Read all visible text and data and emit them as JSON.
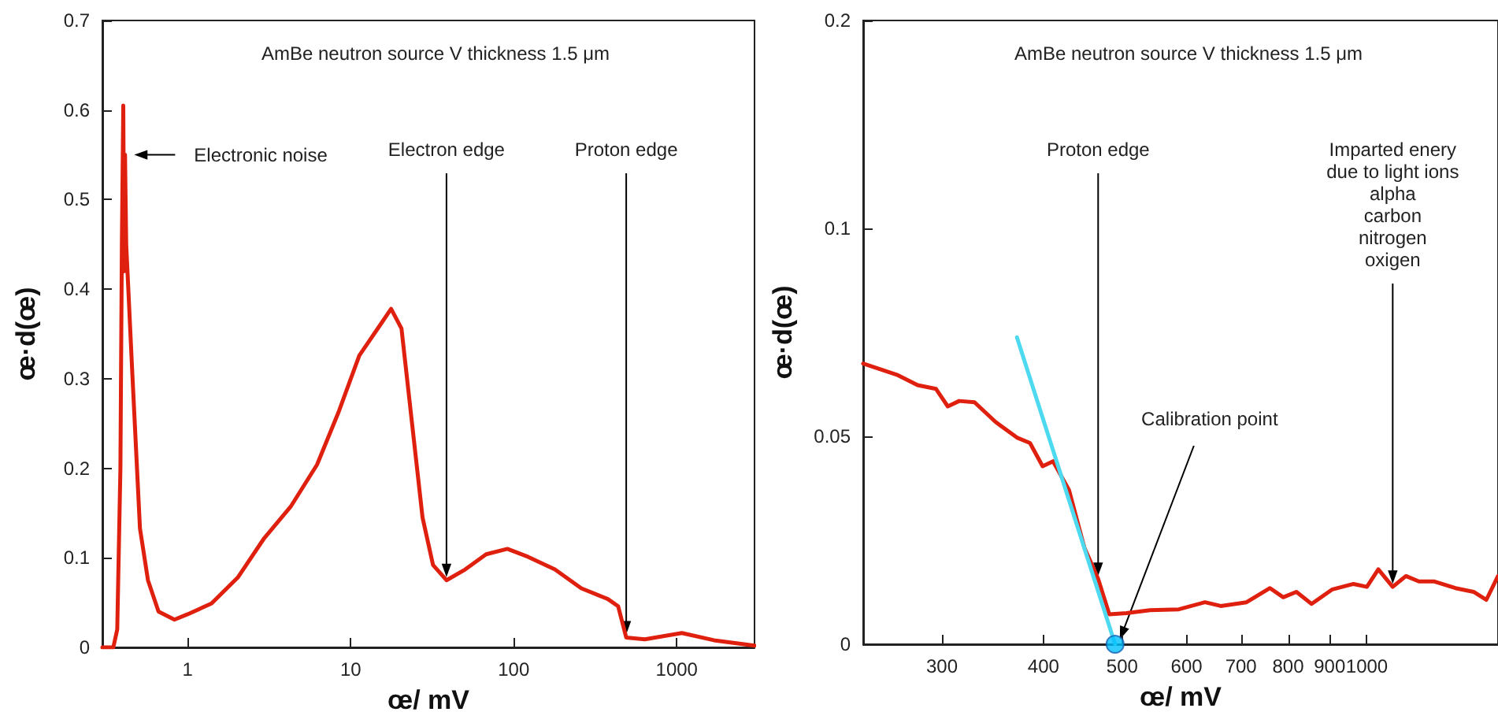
{
  "chart_data": [
    {
      "type": "line",
      "title": "AmBe neutron source V thickness 1.5 μm",
      "xlabel": "œ/ mV",
      "ylabel": "œ·d(œ)",
      "log": "x",
      "xlim": [
        0.3,
        3000
      ],
      "xticks": [
        1,
        10,
        100,
        1000
      ],
      "ylim": [
        0,
        0.7
      ],
      "yticks": [
        0,
        0.1,
        0.2,
        0.3,
        0.4,
        0.5,
        0.6,
        0.7
      ],
      "grid": false,
      "marker": "none",
      "line_style": "solid",
      "series": [
        {
          "color": "#e0200f",
          "x": [
            0.3,
            0.35,
            0.37,
            0.387,
            0.395,
            0.403,
            0.408,
            0.413,
            0.42,
            0.457,
            0.51,
            0.571,
            0.663,
            0.83,
            1,
            1.4,
            2.03,
            2.95,
            4.28,
            6.22,
            8.4,
            11.3,
            15.3,
            17.7,
            20.5,
            23.8,
            27.6,
            32,
            38.7,
            50.4,
            67.8,
            91.5,
            123,
            179,
            260,
            378,
            437,
            490,
            637,
            1075,
            1690,
            3000
          ],
          "values": [
            0,
            0,
            0.02,
            0.2,
            0.45,
            0.605,
            0.42,
            0.55,
            0.45,
            0.309,
            0.133,
            0.075,
            0.04,
            0.031,
            0.037,
            0.049,
            0.078,
            0.122,
            0.157,
            0.204,
            0.262,
            0.326,
            0.361,
            0.378,
            0.356,
            0.25,
            0.145,
            0.092,
            0.075,
            0.087,
            0.104,
            0.11,
            0.101,
            0.087,
            0.066,
            0.054,
            0.046,
            0.011,
            0.009,
            0.016,
            0.008,
            0.002
          ]
        }
      ],
      "annotations": [
        {
          "text": "Electronic noise",
          "x": 0.43,
          "y": 0.55
        },
        {
          "text": "Electron edge",
          "x": 38.7,
          "y": 0.075
        },
        {
          "text": "Proton edge",
          "x": 490,
          "y": 0.011
        }
      ]
    },
    {
      "type": "line",
      "title": "AmBe neutron source V thickness 1.5 μm",
      "xlabel": "œ/ mV",
      "ylabel": "œ·d(œ)",
      "log": "x",
      "xlim": [
        240,
        1450
      ],
      "xticks": [
        300,
        400,
        500,
        600,
        700,
        800,
        900,
        1000
      ],
      "ylim": [
        0,
        0.15
      ],
      "yticks": [
        0,
        0.05,
        0.1,
        {
          "value": 0.15,
          "label": "0.2"
        }
      ],
      "grid": false,
      "marker": "none",
      "line_style": "solid",
      "series": [
        {
          "color": "#e0200f",
          "x": [
            240,
            264,
            280,
            295,
            305,
            315,
            329,
            349,
            371,
            385,
            399,
            411,
            430,
            449,
            467,
            482,
            506,
            541,
            587,
            632,
            661,
            711,
            760,
            789,
            819,
            855,
            907,
            963,
            1000,
            1033,
            1076,
            1117,
            1159,
            1211,
            1285,
            1353,
            1403,
            1450
          ],
          "values": [
            0.0675,
            0.0648,
            0.0623,
            0.0614,
            0.0572,
            0.0585,
            0.0582,
            0.0535,
            0.0497,
            0.0484,
            0.0428,
            0.044,
            0.0371,
            0.0233,
            0.0157,
            0.0072,
            0.0075,
            0.0082,
            0.0084,
            0.0101,
            0.0092,
            0.0101,
            0.0135,
            0.0113,
            0.0126,
            0.0097,
            0.0132,
            0.0145,
            0.0138,
            0.018,
            0.0138,
            0.0164,
            0.0151,
            0.0151,
            0.0135,
            0.0126,
            0.0107,
            0.0164
          ]
        },
        {
          "color": "#4dd9f0",
          "x": [
            371,
            490
          ],
          "values": [
            0.0738,
            0
          ]
        },
        {
          "type": "scatter",
          "marker": "circle",
          "color": "#00bfff",
          "x": [
            490
          ],
          "values": [
            0
          ]
        }
      ],
      "annotations": [
        {
          "text": "Proton edge",
          "x": 467,
          "y": 0.0157
        },
        {
          "text": "Calibration point",
          "x": 490,
          "y": 0
        },
        {
          "text": "Imparted enery\ndue to light ions\nalpha\ncarbon\nnitrogen\noxigen",
          "x": 1076,
          "y": 0.0138
        }
      ]
    }
  ]
}
